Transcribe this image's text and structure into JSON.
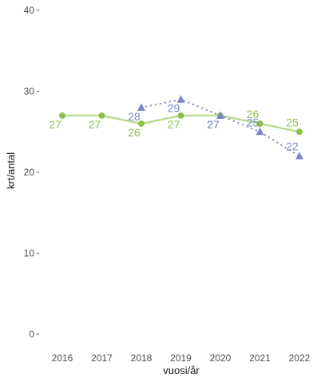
{
  "chart_data": {
    "type": "line",
    "title": "",
    "xlabel": "vuosi/år",
    "ylabel": "krt/antal",
    "x": [
      "2016",
      "2017",
      "2018",
      "2019",
      "2020",
      "2021",
      "2022"
    ],
    "ylim": [
      0,
      40
    ],
    "yticks": [
      0,
      10,
      20,
      30,
      40
    ],
    "grid": false,
    "legend": "none",
    "series": [
      {
        "values": [
          27,
          27,
          26,
          27,
          27,
          26,
          25
        ],
        "color": "#8cc04b",
        "line_color": "#b9dc8e",
        "style": "solid",
        "marker": "circle"
      },
      {
        "values": [
          null,
          null,
          28,
          29,
          27,
          25,
          22
        ],
        "color": "#7b86c6",
        "line_color": "#7b86c6",
        "style": "dotted",
        "marker": "triangle"
      }
    ]
  }
}
